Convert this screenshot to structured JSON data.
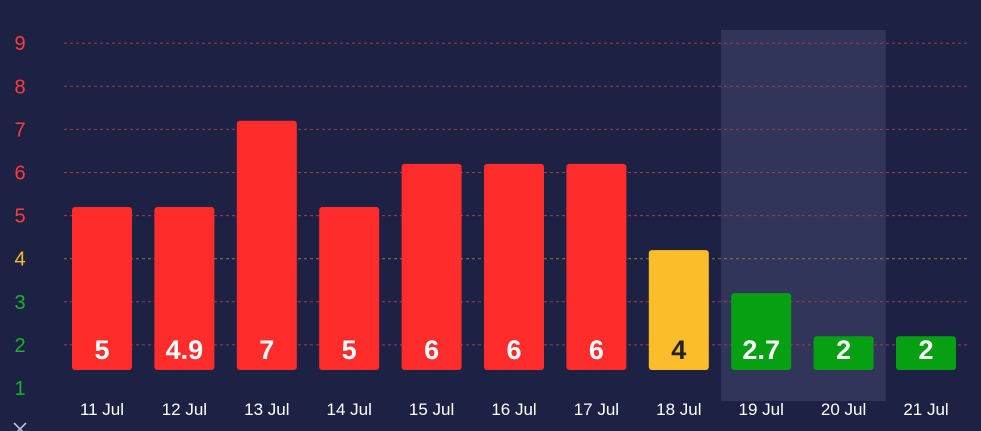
{
  "chart_data": {
    "type": "bar",
    "title": "",
    "xlabel": "",
    "ylabel": "",
    "categories": [
      "11 Jul",
      "12 Jul",
      "13 Jul",
      "14 Jul",
      "15 Jul",
      "16 Jul",
      "17 Jul",
      "18 Jul",
      "19 Jul",
      "20 Jul",
      "21 Jul"
    ],
    "values": [
      5,
      4.9,
      7,
      5,
      6,
      6,
      6,
      4,
      2.7,
      2,
      2
    ],
    "bar_heights": [
      5.2,
      5.2,
      7.2,
      5.2,
      6.2,
      6.2,
      6.2,
      4.2,
      3.2,
      2.2,
      2.2
    ],
    "value_labels": [
      "5",
      "4.9",
      "7",
      "5",
      "6",
      "6",
      "6",
      "4",
      "2.7",
      "2",
      "2"
    ],
    "bar_colors": [
      "#ff2c2c",
      "#ff2c2c",
      "#ff2c2c",
      "#ff2c2c",
      "#ff2c2c",
      "#ff2c2c",
      "#ff2c2c",
      "#fcbd2a",
      "#07a012",
      "#07a012",
      "#07a012"
    ],
    "label_colors": [
      "#ffffff",
      "#ffffff",
      "#ffffff",
      "#ffffff",
      "#ffffff",
      "#ffffff",
      "#ffffff",
      "#222222",
      "#ffffff",
      "#ffffff",
      "#ffffff"
    ],
    "y_ticks": [
      {
        "label": "9",
        "value": 9,
        "color": "#ff3b3b"
      },
      {
        "label": "8",
        "value": 8,
        "color": "#ff3b3b"
      },
      {
        "label": "7",
        "value": 7,
        "color": "#ff3b3b"
      },
      {
        "label": "6",
        "value": 6,
        "color": "#ff3b3b"
      },
      {
        "label": "5",
        "value": 5,
        "color": "#ff3b3b"
      },
      {
        "label": "4",
        "value": 4,
        "color": "#fcbd2a"
      },
      {
        "label": "3",
        "value": 3,
        "color": "#18b326"
      },
      {
        "label": "2",
        "value": 2,
        "color": "#18b326"
      },
      {
        "label": "1",
        "value": 1,
        "color": "#18b326"
      }
    ],
    "ylim": [
      1,
      9
    ],
    "grid": true,
    "grid_color": "#a23a4a",
    "highlight_range": [
      "19 Jul",
      "20 Jul"
    ],
    "highlight_color": "#31355a",
    "background": "#1d2144"
  },
  "icons": {
    "corner": "close-icon"
  }
}
